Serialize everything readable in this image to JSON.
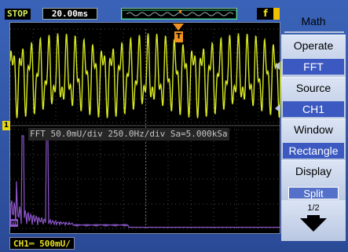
{
  "status": {
    "run_state": "STOP",
    "timebase": "20.00ms",
    "trigger_slope": "f"
  },
  "scope": {
    "ch_marker": "1",
    "trigger_marker": "T",
    "fft_label": "FFT",
    "fft_info": " 50.0mU/div 250.0Hz/div Sa=5.000kSa",
    "math_marker": "m",
    "ch1_scale": "CH1═ 500mU/"
  },
  "colors": {
    "trace_ch1": "#d8e820",
    "trace_fft": "#8b55c8",
    "grid_dot": "#4a4a4a",
    "softkey_value_bg": "#3b59c0"
  },
  "menu": {
    "title": "Math",
    "keys": [
      {
        "name": "Operate",
        "value": "FFT"
      },
      {
        "name": "Source",
        "value": "CH1"
      },
      {
        "name": "Window",
        "value": "Rectangle"
      },
      {
        "name": "Display",
        "value": "Split"
      }
    ],
    "page": "1/2",
    "page_icon": "down-arrow-icon"
  }
}
